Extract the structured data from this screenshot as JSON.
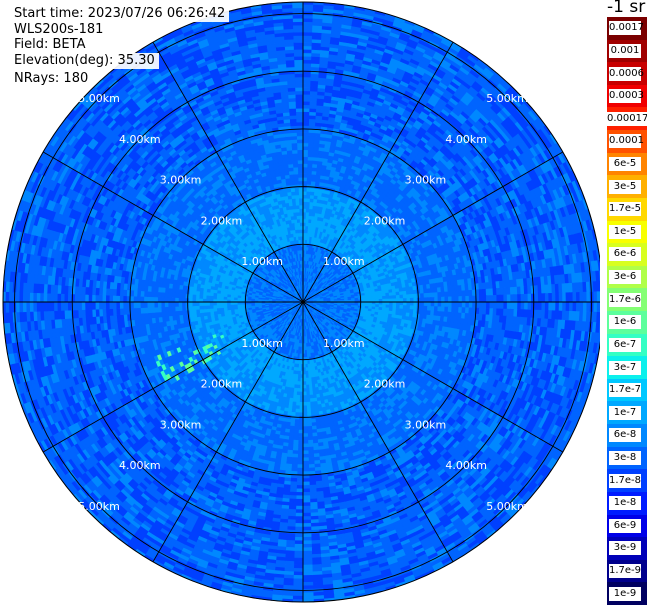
{
  "header": {
    "start_time": "Start time: 2023/07/26 06:26:42",
    "device": "WLS200s-181",
    "field": "Field: BETA",
    "elevation": "Elevation(deg): 35.30",
    "nrays": "NRays: 180"
  },
  "chart_data": {
    "type": "heatmap",
    "projection": "polar-ppi",
    "nrays": 180,
    "range_max_km": 5.2,
    "range_rings_km": [
      1,
      2,
      3,
      4,
      5
    ],
    "range_labels": [
      "1.00km",
      "2.00km",
      "3.00km",
      "4.00km",
      "5.00km"
    ],
    "azimuth_spokes_deg": [
      0,
      30,
      60,
      90,
      120,
      150,
      180,
      210,
      240,
      270,
      300,
      330
    ],
    "colorbar": {
      "unit": "-1 sr",
      "labels": [
        "0.0017",
        "0.001",
        "0.0006",
        "0.0003",
        "0.00017",
        "0.0001",
        "6e-5",
        "3e-5",
        "1.7e-5",
        "1e-5",
        "6e-6",
        "3e-6",
        "1.7e-6",
        "1e-6",
        "6e-7",
        "3e-7",
        "1.7e-7",
        "1e-7",
        "6e-8",
        "3e-8",
        "1.7e-8",
        "1e-8",
        "6e-9",
        "3e-9",
        "1.7e-9",
        "1e-9"
      ],
      "colors": [
        "#7a0000",
        "#a00000",
        "#c80000",
        "#f00000",
        "#ff2000",
        "#ff5200",
        "#ff8400",
        "#ffb000",
        "#ffd800",
        "#f8ff00",
        "#d8ff1f",
        "#b0ff48",
        "#84ff74",
        "#5cff9c",
        "#34ffc4",
        "#0cf0ec",
        "#00c8ff",
        "#00a8ff",
        "#0088ff",
        "#0064ff",
        "#0040ff",
        "#001cff",
        "#0000e8",
        "#0000b8",
        "#00008c",
        "#000060"
      ]
    },
    "data_summary": {
      "center": "1e-7",
      "near_ring": "6e-8",
      "mid_range": "3e-8",
      "far_range": "1.7e-8",
      "plume_azimuth_deg": [
        237,
        250
      ],
      "plume_range_km": [
        1.5,
        2.8
      ],
      "plume_value": "1e-6"
    }
  }
}
